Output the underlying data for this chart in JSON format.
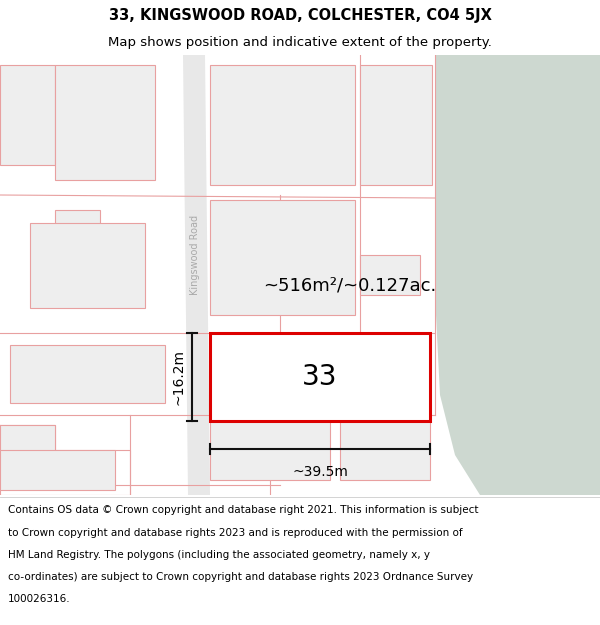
{
  "title": "33, KINGSWOOD ROAD, COLCHESTER, CO4 5JX",
  "subtitle": "Map shows position and indicative extent of the property.",
  "footer_lines": [
    "Contains OS data © Crown copyright and database right 2021. This information is subject",
    "to Crown copyright and database rights 2023 and is reproduced with the permission of",
    "HM Land Registry. The polygons (including the associated geometry, namely x, y",
    "co-ordinates) are subject to Crown copyright and database rights 2023 Ordnance Survey",
    "100026316."
  ],
  "bg_color": "#ffffff",
  "map_bg": "#f5f5f5",
  "green_color": "#cdd8d0",
  "road_fill": "#e0e0e0",
  "parcel_fill": "#eeeeee",
  "parcel_edge": "#e8a0a0",
  "plot_edge": "#dd0000",
  "plot_fill": "#ffffff",
  "dim_color": "#111111",
  "road_text_color": "#aaaaaa",
  "area_text": "~516m²/~0.127ac.",
  "plot_number": "33",
  "width_label": "~39.5m",
  "height_label": "~16.2m",
  "road_name": "Kingswood Road",
  "title_fontsize": 10.5,
  "subtitle_fontsize": 9.5,
  "footer_fontsize": 7.5,
  "area_fontsize": 13,
  "plot_num_fontsize": 20,
  "dim_fontsize": 10
}
